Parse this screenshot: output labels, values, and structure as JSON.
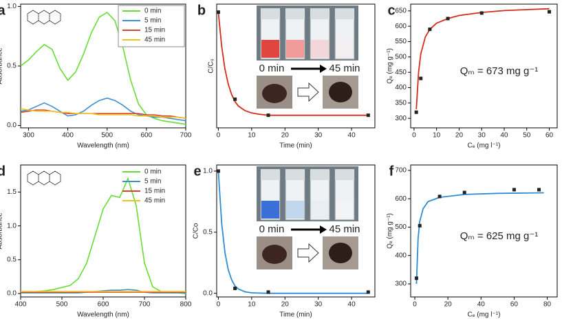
{
  "chart_data": [
    {
      "type": "line",
      "label": "a",
      "xlabel": "Wavelength (nm)",
      "ylabel": "Absorbance",
      "xlim": [
        280,
        700
      ],
      "xticks": [
        300,
        400,
        500,
        600,
        700
      ],
      "ylim": [
        -0.02,
        1.02
      ],
      "yticks": [
        {
          "value": 0,
          "label": "0.0"
        },
        {
          "value": 0.5,
          "label": "0.5"
        },
        {
          "value": 1,
          "label": "1.0"
        }
      ],
      "legend": "upper-right",
      "legend_box": true,
      "x": [
        280,
        300,
        320,
        340,
        360,
        380,
        400,
        420,
        440,
        460,
        480,
        500,
        520,
        540,
        560,
        580,
        600,
        620,
        640,
        660,
        680,
        700
      ],
      "series": [
        {
          "name": "0 min",
          "color": "#66dd33",
          "values": [
            0.5,
            0.55,
            0.62,
            0.68,
            0.64,
            0.48,
            0.38,
            0.45,
            0.6,
            0.78,
            0.91,
            0.95,
            0.88,
            0.66,
            0.38,
            0.18,
            0.09,
            0.06,
            0.04,
            0.03,
            0.02,
            0.01
          ]
        },
        {
          "name": "5 min",
          "color": "#3c8fd0",
          "values": [
            0.12,
            0.13,
            0.16,
            0.19,
            0.16,
            0.12,
            0.08,
            0.09,
            0.12,
            0.17,
            0.21,
            0.23,
            0.21,
            0.17,
            0.12,
            0.09,
            0.08,
            0.07,
            0.07,
            0.06,
            0.05,
            0.04
          ]
        },
        {
          "name": "15 min",
          "color": "#d9452b",
          "values": [
            0.11,
            0.12,
            0.13,
            0.13,
            0.12,
            0.11,
            0.1,
            0.1,
            0.1,
            0.1,
            0.1,
            0.1,
            0.1,
            0.1,
            0.1,
            0.1,
            0.09,
            0.09,
            0.08,
            0.08,
            0.07,
            0.06
          ]
        },
        {
          "name": "45 min",
          "color": "#f2c21b",
          "values": [
            0.14,
            0.13,
            0.12,
            0.12,
            0.12,
            0.11,
            0.11,
            0.1,
            0.1,
            0.1,
            0.09,
            0.09,
            0.09,
            0.09,
            0.09,
            0.08,
            0.08,
            0.08,
            0.07,
            0.07,
            0.07,
            0.06
          ]
        }
      ]
    },
    {
      "type": "scatter",
      "label": "b",
      "xlabel": "Time (min)",
      "ylabel": "C/C₀",
      "xlim": [
        -0.5,
        47
      ],
      "xticks": [
        0,
        10,
        20,
        30,
        40
      ],
      "ylim": [
        -0.01,
        1.07
      ],
      "points": {
        "color": "#222222",
        "x": [
          0,
          5,
          15,
          45
        ],
        "values": [
          1.0,
          0.24,
          0.1,
          0.1
        ]
      },
      "fit": {
        "color": "#d42a1c",
        "x": [
          0,
          1,
          2,
          3,
          4,
          5,
          6,
          8,
          10,
          12,
          15,
          20,
          30,
          45
        ],
        "values": [
          1.0,
          0.7,
          0.5,
          0.37,
          0.28,
          0.22,
          0.18,
          0.14,
          0.12,
          0.11,
          0.1,
          0.1,
          0.1,
          0.1
        ]
      },
      "annotations": [
        "0 min",
        "45 min"
      ],
      "photo": "red"
    },
    {
      "type": "scatter",
      "label": "c",
      "xlabel": "Cₑ (mg l⁻¹)",
      "ylabel": "Qₑ (mg g⁻¹)",
      "xlim": [
        -1.5,
        63.5
      ],
      "xticks": [
        0,
        10,
        20,
        30,
        40,
        50,
        60
      ],
      "ylim": [
        269,
        672
      ],
      "yticks": [
        300,
        350,
        400,
        450,
        500,
        550,
        600,
        650
      ],
      "points": {
        "color": "#222222",
        "x": [
          1,
          3,
          7,
          15,
          30,
          60
        ],
        "values": [
          320,
          430,
          590,
          625,
          643,
          647
        ]
      },
      "fit": {
        "color": "#d42a1c",
        "x": [
          1,
          2,
          3,
          5,
          7,
          10,
          15,
          20,
          30,
          40,
          50,
          60
        ],
        "values": [
          330,
          450,
          510,
          565,
          590,
          610,
          625,
          635,
          645,
          651,
          654,
          657
        ]
      },
      "annotations": [
        "Qₘ = 673 mg g⁻¹"
      ]
    },
    {
      "type": "line",
      "label": "d",
      "xlabel": "Wavelength (nm)",
      "ylabel": "Absorbance",
      "xlim": [
        400,
        800
      ],
      "xticks": [
        400,
        500,
        600,
        700,
        800
      ],
      "ylim": [
        -0.05,
        1.9
      ],
      "yticks": [
        {
          "value": 0,
          "label": "0.0"
        },
        {
          "value": 0.5,
          "label": "0.5"
        },
        {
          "value": 1,
          "label": "1.0"
        },
        {
          "value": 1.5,
          "label": "1.5"
        }
      ],
      "legend": "upper-right",
      "legend_box": false,
      "x": [
        400,
        420,
        440,
        460,
        480,
        500,
        520,
        540,
        560,
        580,
        600,
        620,
        640,
        660,
        680,
        700,
        720,
        740,
        760,
        780,
        800
      ],
      "series": [
        {
          "name": "0 min",
          "color": "#66dd33",
          "values": [
            0.02,
            0.02,
            0.03,
            0.04,
            0.06,
            0.09,
            0.12,
            0.22,
            0.45,
            0.85,
            1.25,
            1.45,
            1.42,
            1.7,
            1.3,
            0.45,
            0.1,
            0.03,
            0.01,
            0.01,
            0.0
          ]
        },
        {
          "name": "5 min",
          "color": "#3c8fd0",
          "values": [
            0.01,
            0.01,
            0.01,
            0.01,
            0.01,
            0.01,
            0.01,
            0.01,
            0.02,
            0.03,
            0.04,
            0.05,
            0.05,
            0.06,
            0.05,
            0.02,
            0.01,
            0.01,
            0.01,
            0.01,
            0.01
          ]
        },
        {
          "name": "15 min",
          "color": "#d9452b",
          "values": [
            0.02,
            0.02,
            0.02,
            0.02,
            0.02,
            0.02,
            0.02,
            0.02,
            0.02,
            0.02,
            0.02,
            0.02,
            0.02,
            0.02,
            0.02,
            0.02,
            0.02,
            0.02,
            0.02,
            0.02,
            0.02
          ]
        },
        {
          "name": "45 min",
          "color": "#f2c21b",
          "values": [
            0.03,
            0.03,
            0.03,
            0.03,
            0.03,
            0.03,
            0.03,
            0.03,
            0.03,
            0.03,
            0.03,
            0.03,
            0.03,
            0.03,
            0.03,
            0.03,
            0.03,
            0.03,
            0.03,
            0.03,
            0.03
          ]
        }
      ]
    },
    {
      "type": "scatter",
      "label": "e",
      "xlabel": "Time (min)",
      "ylabel": "C/Co",
      "xlim": [
        -0.5,
        47
      ],
      "xticks": [
        0,
        10,
        20,
        30,
        40
      ],
      "ylim": [
        -0.03,
        1.05
      ],
      "yticks": [
        {
          "value": 0,
          "label": "0.0"
        },
        {
          "value": 0.5,
          "label": "0.5"
        },
        {
          "value": 1,
          "label": "1.0"
        }
      ],
      "points": {
        "color": "#222222",
        "x": [
          0,
          5,
          15,
          45
        ],
        "values": [
          1.0,
          0.04,
          0.01,
          0.01
        ]
      },
      "fit": {
        "color": "#2e8bd6",
        "x": [
          0,
          1,
          2,
          3,
          4,
          5,
          6,
          8,
          10,
          15,
          45
        ],
        "values": [
          1.0,
          0.57,
          0.33,
          0.19,
          0.11,
          0.06,
          0.035,
          0.012,
          0.004,
          0.0,
          0.0
        ]
      },
      "annotations": [
        "0 min",
        "45 min"
      ],
      "photo": "blue"
    },
    {
      "type": "scatter",
      "label": "f",
      "xlabel": "Cₑ (mg l⁻¹)",
      "ylabel": "Qₑ (mg g⁻¹)",
      "xlim": [
        -2.5,
        86
      ],
      "xticks": [
        0,
        20,
        40,
        60,
        80
      ],
      "ylim": [
        254,
        719
      ],
      "yticks": [
        300,
        400,
        500,
        600,
        700
      ],
      "points": {
        "color": "#222222",
        "x": [
          1,
          3,
          15,
          30,
          60,
          75
        ],
        "values": [
          320,
          505,
          608,
          622,
          632,
          632
        ]
      },
      "fit": {
        "color": "#2e8bd6",
        "x": [
          1,
          2,
          3,
          5,
          8,
          15,
          30,
          50,
          78
        ],
        "values": [
          300,
          460,
          520,
          565,
          590,
          605,
          615,
          619,
          621
        ]
      },
      "annotations": [
        "Qₘ = 625 mg g⁻¹"
      ]
    }
  ]
}
